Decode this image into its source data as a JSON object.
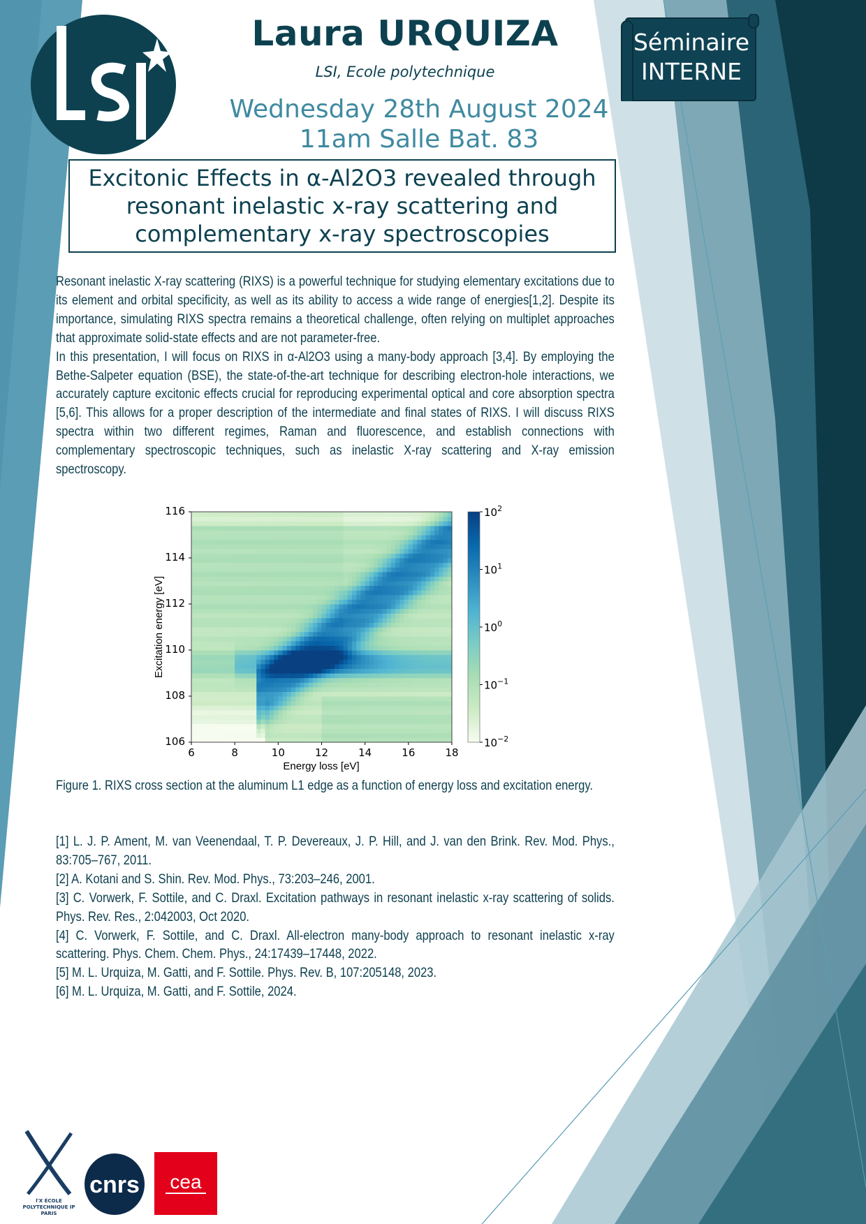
{
  "header": {
    "speaker": "Laura URQUIZA",
    "affiliation": "LSI, Ecole polytechnique",
    "date": "Wednesday 28th August 2024",
    "time_place": "11am Salle Bat. 83",
    "badge_line1": "Séminaire",
    "badge_line2": "INTERNE",
    "logo_text": "LSI"
  },
  "title": {
    "line1": "Excitonic Effects in α-Al2O3 revealed through",
    "line2": "resonant inelastic x-ray scattering and",
    "line3": "complementary x-ray spectroscopies"
  },
  "abstract": {
    "p1": "Resonant inelastic X-ray scattering (RIXS) is a powerful technique for studying elementary excitations due to its element and orbital specificity, as well as its ability to access a wide range of energies[1,2]. Despite its importance, simulating RIXS spectra remains a theoretical challenge, often relying on multiplet approaches that approximate solid-state effects and are not parameter-free.",
    "p2": "In this presentation, I will focus on RIXS in α-Al2O3 using a many-body approach [3,4]. By employing the Bethe-Salpeter equation (BSE), the state-of-the-art technique for describing electron-hole interactions, we accurately capture excitonic effects crucial for reproducing experimental optical and core absorption spectra [5,6]. This allows for a proper description of the intermediate and final states of RIXS. I will discuss RIXS spectra within two different regimes, Raman and fluorescence, and establish connections with complementary spectroscopic techniques, such as inelastic X-ray scattering and X-ray emission spectroscopy."
  },
  "chart_data": {
    "type": "heatmap",
    "xlabel": "Energy loss [eV]",
    "ylabel": "Excitation energy [eV]",
    "xlim": [
      6,
      18
    ],
    "ylim": [
      106,
      116
    ],
    "xticks": [
      "6",
      "8",
      "10",
      "12",
      "14",
      "16",
      "18"
    ],
    "yticks": [
      "106",
      "108",
      "110",
      "112",
      "114",
      "116"
    ],
    "colorbar": {
      "scale": "log",
      "range": [
        0.01,
        100
      ],
      "ticks": [
        {
          "base": "10",
          "exp": "2"
        },
        {
          "base": "10",
          "exp": "1"
        },
        {
          "base": "10",
          "exp": "0"
        },
        {
          "base": "10",
          "exp": "−1"
        },
        {
          "base": "10",
          "exp": "−2"
        }
      ],
      "colors": [
        "#f7fcf0",
        "#ccebc5",
        "#a8ddb5",
        "#7bccc4",
        "#4eb3d3",
        "#2b8cbe",
        "#0868ac",
        "#084081"
      ]
    },
    "grid": false
  },
  "caption": "Figure 1. RIXS cross section at the aluminum L1 edge as a function of energy loss and excitation energy.",
  "references": [
    "[1] L. J. P. Ament, M. van Veenendaal, T. P. Devereaux, J. P. Hill, and J. van den Brink. Rev. Mod. Phys., 83:705–767, 2011.",
    "[2] A. Kotani and S. Shin. Rev. Mod. Phys., 73:203–246, 2001.",
    "[3] C. Vorwerk, F. Sottile, and C. Draxl. Excitation pathways in resonant inelastic x-ray scattering of solids. Phys. Rev. Res., 2:042003, Oct 2020.",
    "[4] C. Vorwerk, F. Sottile, and C. Draxl. All-electron many-body approach to resonant inelastic x-ray scattering. Phys. Chem. Chem. Phys., 24:17439–17448, 2022.",
    "[5] M. L. Urquiza, M. Gatti, and F. Sottile. Phys. Rev. B, 107:205148, 2023.",
    "[6] M. L. Urquiza, M. Gatti, and F. Sottile, 2024."
  ],
  "footer_logos": {
    "polytechnique": "l'X ÉCOLE POLYTECHNIQUE IP PARIS",
    "cnrs": "cnrs",
    "cea": "cea"
  },
  "colors": {
    "dark_teal": "#0d4150",
    "accent_blue": "#3f8aa0",
    "cea_red": "#e2001a",
    "cnrs_navy": "#0c2a4a"
  }
}
